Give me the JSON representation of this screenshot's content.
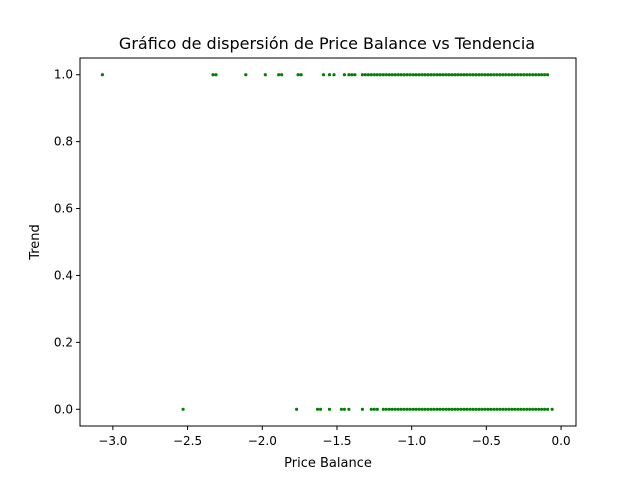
{
  "chart_data": {
    "type": "scatter",
    "title": "Gráfico de dispersión de Price Balance vs Tendencia",
    "xlabel": "Price Balance",
    "ylabel": "Trend",
    "xlim": [
      -3.22,
      0.1
    ],
    "ylim": [
      -0.05,
      1.05
    ],
    "xticks": [
      -3.0,
      -2.5,
      -2.0,
      -1.5,
      -1.0,
      -0.5,
      0.0
    ],
    "xtick_labels": [
      "−3.0",
      "−2.5",
      "−2.0",
      "−1.5",
      "−1.0",
      "−0.5",
      "0.0"
    ],
    "yticks": [
      0.0,
      0.2,
      0.4,
      0.6,
      0.8,
      1.0
    ],
    "ytick_labels": [
      "0.0",
      "0.2",
      "0.4",
      "0.6",
      "0.8",
      "1.0"
    ],
    "grid": false,
    "marker_color": "#008000",
    "series": [
      {
        "x": [
          -3.07,
          -2.33,
          -2.31,
          -2.11,
          -1.98,
          -1.89,
          -1.87,
          -1.76,
          -1.74,
          -1.59,
          -1.55,
          -1.52,
          -1.45,
          -1.42,
          -1.4,
          -1.38,
          -1.33,
          -1.31,
          -1.29,
          -1.27,
          -1.25,
          -1.23,
          -1.21,
          -1.19,
          -1.17,
          -1.15,
          -1.13,
          -1.11,
          -1.09,
          -1.07,
          -1.05,
          -1.03,
          -1.01,
          -0.99,
          -0.97,
          -0.95,
          -0.93,
          -0.91,
          -0.89,
          -0.87,
          -0.85,
          -0.83,
          -0.81,
          -0.79,
          -0.77,
          -0.75,
          -0.73,
          -0.71,
          -0.69,
          -0.67,
          -0.65,
          -0.63,
          -0.61,
          -0.59,
          -0.57,
          -0.55,
          -0.53,
          -0.51,
          -0.49,
          -0.47,
          -0.45,
          -0.43,
          -0.41,
          -0.39,
          -0.37,
          -0.35,
          -0.33,
          -0.31,
          -0.29,
          -0.27,
          -0.25,
          -0.23,
          -0.21,
          -0.19,
          -0.17,
          -0.15,
          -0.13,
          -0.11,
          -0.09
        ],
        "y": [
          1,
          1,
          1,
          1,
          1,
          1,
          1,
          1,
          1,
          1,
          1,
          1,
          1,
          1,
          1,
          1,
          1,
          1,
          1,
          1,
          1,
          1,
          1,
          1,
          1,
          1,
          1,
          1,
          1,
          1,
          1,
          1,
          1,
          1,
          1,
          1,
          1,
          1,
          1,
          1,
          1,
          1,
          1,
          1,
          1,
          1,
          1,
          1,
          1,
          1,
          1,
          1,
          1,
          1,
          1,
          1,
          1,
          1,
          1,
          1,
          1,
          1,
          1,
          1,
          1,
          1,
          1,
          1,
          1,
          1,
          1,
          1,
          1,
          1,
          1,
          1,
          1,
          1,
          1
        ]
      },
      {
        "x": [
          -2.53,
          -1.77,
          -1.63,
          -1.61,
          -1.55,
          -1.47,
          -1.45,
          -1.42,
          -1.33,
          -1.27,
          -1.25,
          -1.23,
          -1.19,
          -1.17,
          -1.15,
          -1.13,
          -1.11,
          -1.09,
          -1.07,
          -1.05,
          -1.03,
          -1.01,
          -0.99,
          -0.97,
          -0.95,
          -0.93,
          -0.91,
          -0.89,
          -0.87,
          -0.85,
          -0.83,
          -0.81,
          -0.79,
          -0.77,
          -0.75,
          -0.73,
          -0.71,
          -0.69,
          -0.67,
          -0.65,
          -0.63,
          -0.61,
          -0.59,
          -0.57,
          -0.55,
          -0.53,
          -0.51,
          -0.49,
          -0.47,
          -0.45,
          -0.43,
          -0.41,
          -0.39,
          -0.37,
          -0.35,
          -0.33,
          -0.31,
          -0.29,
          -0.27,
          -0.25,
          -0.23,
          -0.21,
          -0.19,
          -0.17,
          -0.15,
          -0.13,
          -0.11,
          -0.09,
          -0.06
        ],
        "y": [
          0,
          0,
          0,
          0,
          0,
          0,
          0,
          0,
          0,
          0,
          0,
          0,
          0,
          0,
          0,
          0,
          0,
          0,
          0,
          0,
          0,
          0,
          0,
          0,
          0,
          0,
          0,
          0,
          0,
          0,
          0,
          0,
          0,
          0,
          0,
          0,
          0,
          0,
          0,
          0,
          0,
          0,
          0,
          0,
          0,
          0,
          0,
          0,
          0,
          0,
          0,
          0,
          0,
          0,
          0,
          0,
          0,
          0,
          0,
          0,
          0,
          0,
          0,
          0,
          0,
          0,
          0,
          0,
          0
        ]
      }
    ]
  }
}
